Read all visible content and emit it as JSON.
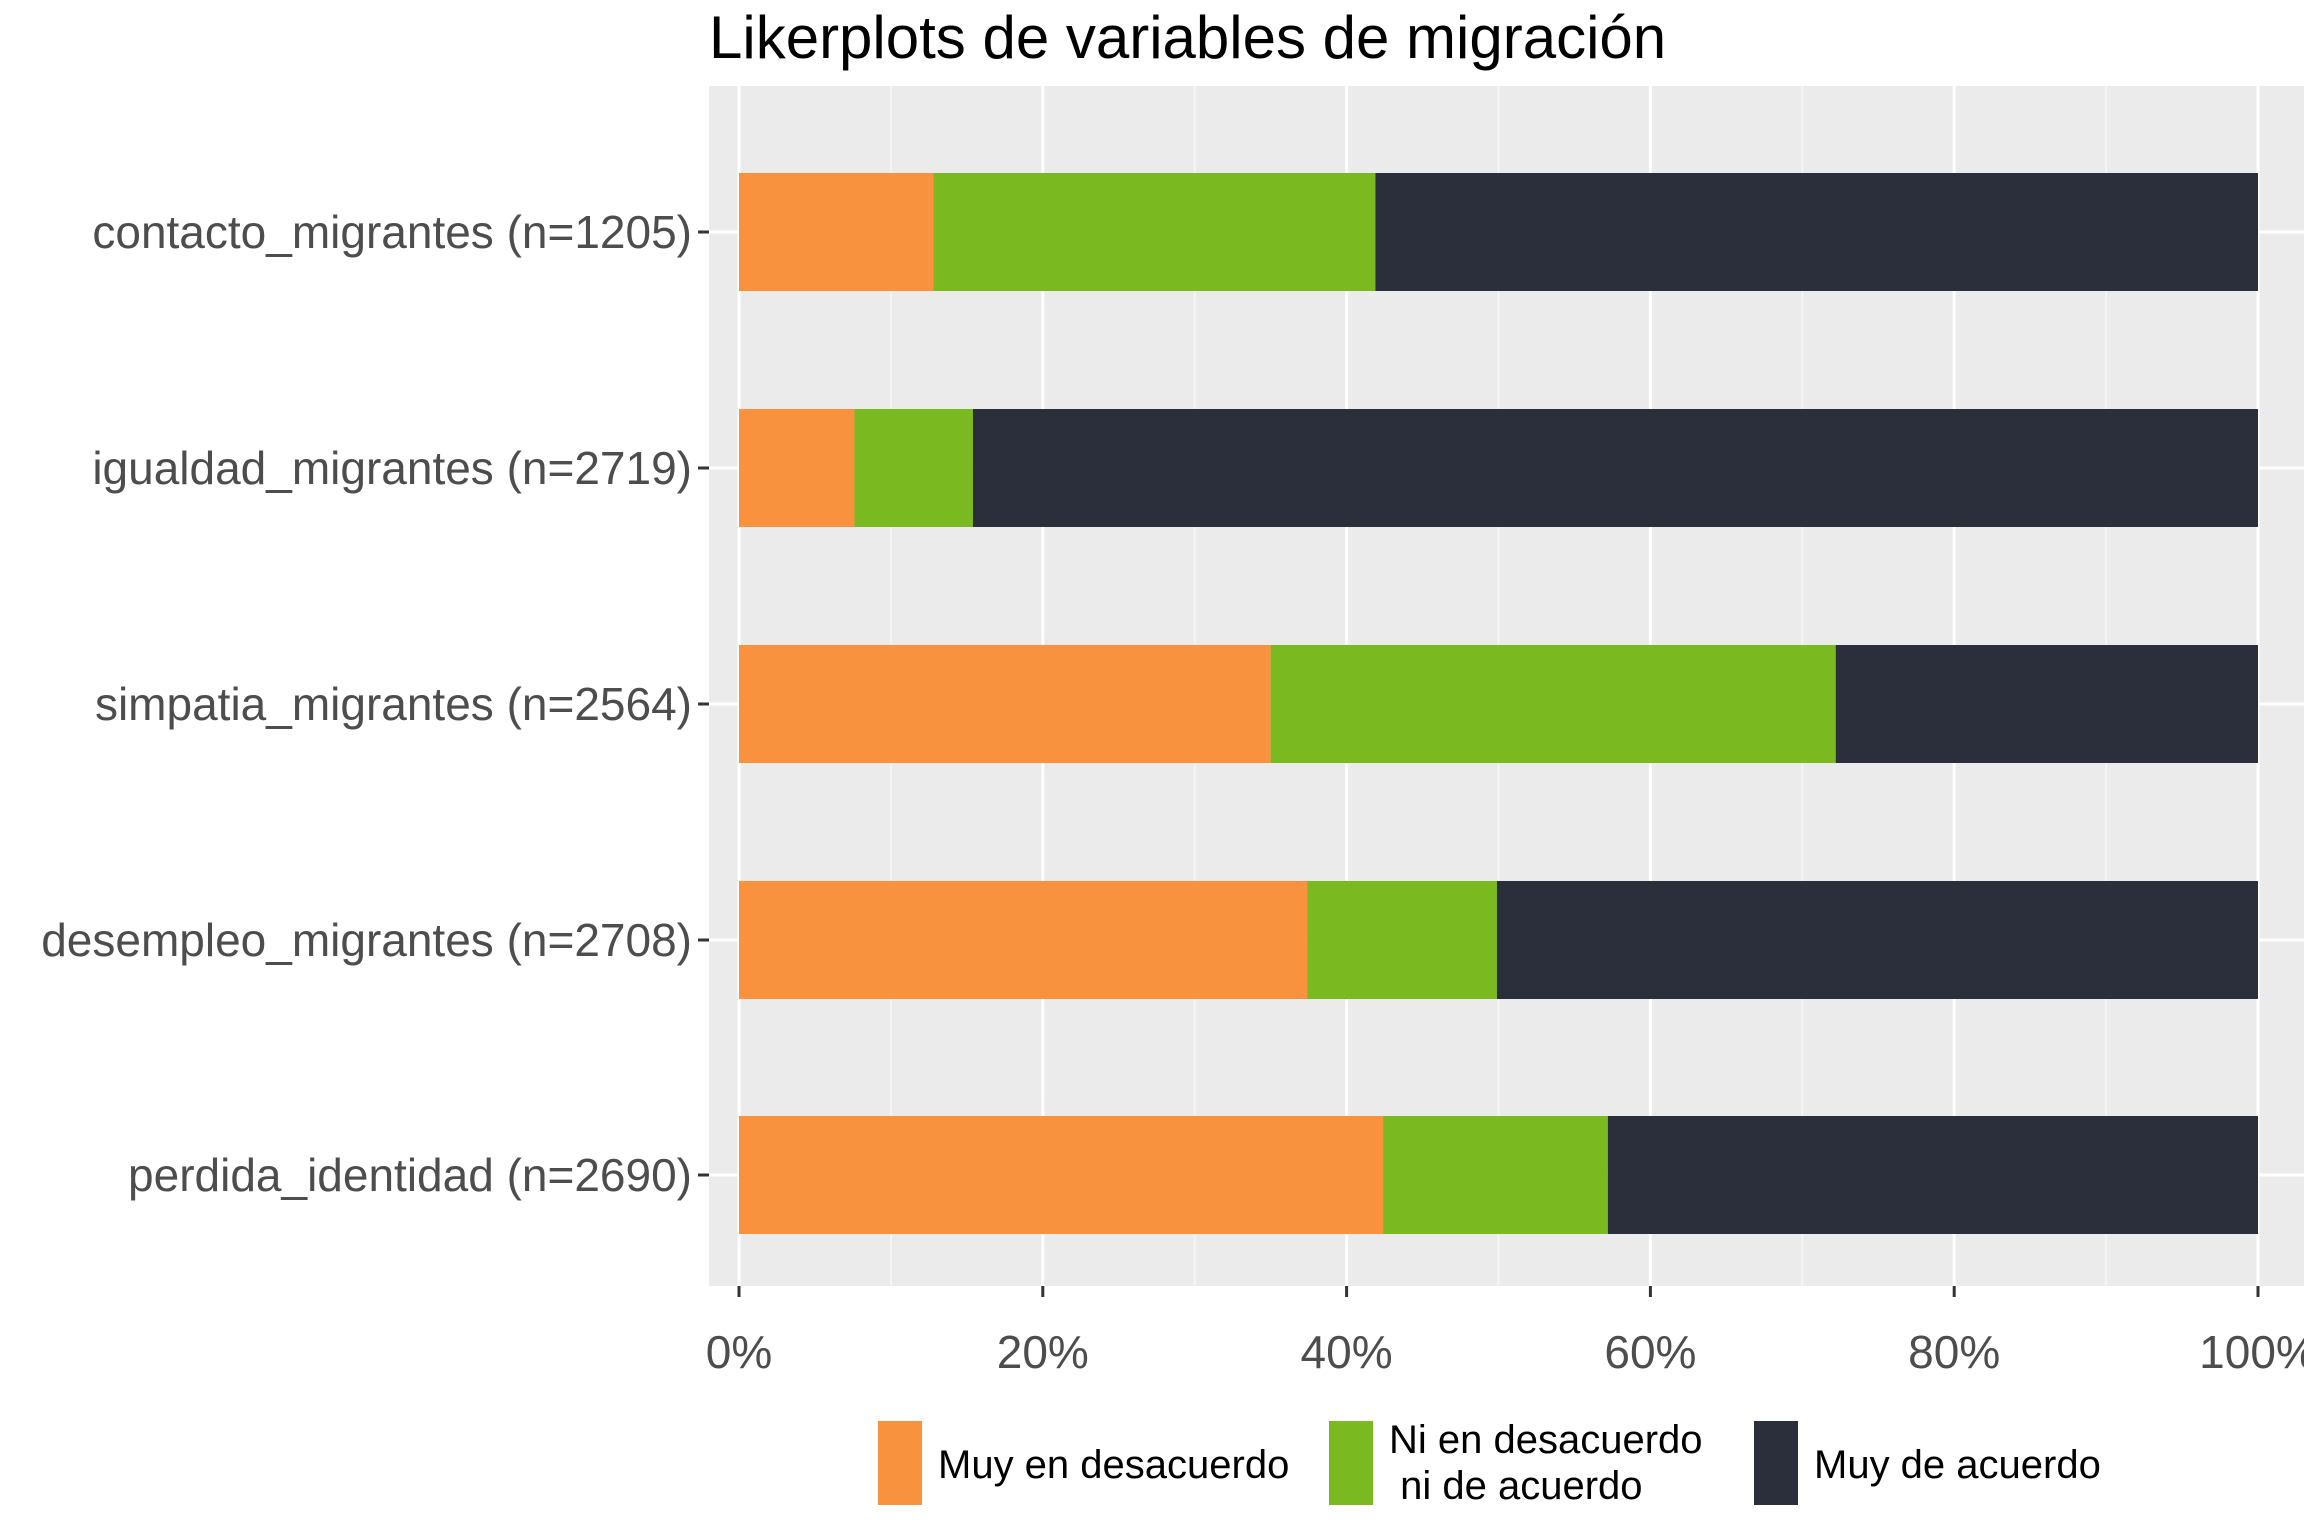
{
  "chart_data": {
    "type": "bar",
    "orientation": "horizontal",
    "stacked": true,
    "title": "Likerplots de variables de migración",
    "xlabel": "",
    "ylabel": "",
    "xlim": [
      0,
      100
    ],
    "x_ticks": [
      "0%",
      "20%",
      "40%",
      "60%",
      "80%",
      "100%"
    ],
    "grid": true,
    "legend_position": "bottom",
    "categories": [
      "contacto_migrantes (n=1205)",
      "igualdad_migrantes (n=2719)",
      "simpatia_migrantes (n=2564)",
      "desempleo_migrantes (n=2708)",
      "perdida_identidad (n=2690)"
    ],
    "series": [
      {
        "name": "Muy en desacuerdo",
        "color": "#F8923E",
        "values": [
          12.8,
          7.6,
          35.0,
          37.4,
          42.4
        ]
      },
      {
        "name": "Ni en desacuerdo\n ni de acuerdo",
        "color": "#7AB920",
        "values": [
          29.1,
          7.8,
          37.2,
          12.5,
          14.8
        ]
      },
      {
        "name": "Muy de acuerdo",
        "color": "#2B2F3C",
        "values": [
          58.1,
          84.6,
          27.8,
          50.1,
          42.8
        ]
      }
    ]
  }
}
